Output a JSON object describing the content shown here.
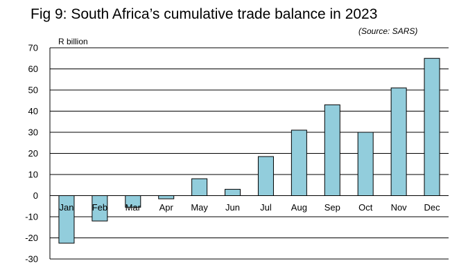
{
  "title": "Fig 9: South Africa’s cumulative trade balance in 2023",
  "source": "(Source: SARS)",
  "chart_data": {
    "type": "bar",
    "title": "Fig 9: South Africa’s cumulative trade balance in 2023",
    "subtitle": "(Source: SARS)",
    "ylabel": "R billion",
    "xlabel": "",
    "categories": [
      "Jan",
      "Feb",
      "Mar",
      "Apr",
      "May",
      "Jun",
      "Jul",
      "Aug",
      "Sep",
      "Oct",
      "Nov",
      "Dec"
    ],
    "values": [
      -22.5,
      -12,
      -5.5,
      -1.5,
      8,
      3,
      18.5,
      31,
      43,
      30,
      51,
      65
    ],
    "ylim": [
      -30,
      70
    ],
    "yticks": [
      70,
      60,
      50,
      40,
      30,
      20,
      10,
      0,
      -10,
      -20,
      -30
    ],
    "grid": true,
    "legend": "none",
    "bar_color": "#92cddc",
    "bar_edge_color": "#000000"
  }
}
